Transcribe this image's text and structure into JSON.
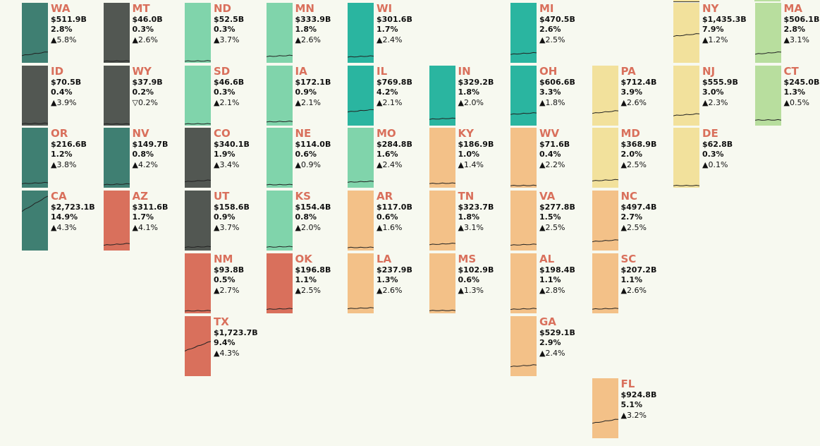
{
  "colors": {
    "a": "#3f7f72",
    "b": "#525752",
    "c": "#80d4ab",
    "d": "#2ab5a0",
    "e": "#f3c188",
    "f": "#d9705c",
    "g": "#f2e19c",
    "h": "#b8de9e"
  },
  "states": [
    {
      "abbr": "WA",
      "col": 0,
      "row": 0,
      "c": "a",
      "gdp": "$511.9B",
      "v": 511.9,
      "share": "2.8%",
      "growth": "▲5.8%"
    },
    {
      "abbr": "MT",
      "col": 1,
      "row": 0,
      "c": "b",
      "gdp": "$46.0B",
      "v": 46,
      "share": "0.3%",
      "growth": "▲2.6%"
    },
    {
      "abbr": "ND",
      "col": 2,
      "row": 0,
      "c": "c",
      "gdp": "$52.5B",
      "v": 52.5,
      "share": "0.3%",
      "growth": "▲3.7%"
    },
    {
      "abbr": "MN",
      "col": 3,
      "row": 0,
      "c": "c",
      "gdp": "$333.9B",
      "v": 333.9,
      "share": "1.8%",
      "growth": "▲2.6%"
    },
    {
      "abbr": "WI",
      "col": 4,
      "row": 0,
      "c": "d",
      "gdp": "$301.6B",
      "v": 301.6,
      "share": "1.7%",
      "growth": "▲2.4%"
    },
    {
      "abbr": "MI",
      "col": 6,
      "row": 0,
      "c": "d",
      "gdp": "$470.5B",
      "v": 470.5,
      "share": "2.6%",
      "growth": "▲2.5%"
    },
    {
      "abbr": "NY",
      "col": 8,
      "row": 0,
      "c": "g",
      "gdp": "$1,435.3B",
      "v": 1435.3,
      "share": "7.9%",
      "growth": "▲1.2%"
    },
    {
      "abbr": "MA",
      "col": 9,
      "row": 0,
      "c": "h",
      "gdp": "$506.1B",
      "v": 506.1,
      "share": "2.8%",
      "growth": "▲3.1%"
    },
    {
      "abbr": "ID",
      "col": 0,
      "row": 1,
      "c": "b",
      "gdp": "$70.5B",
      "v": 70.5,
      "share": "0.4%",
      "growth": "▲3.9%"
    },
    {
      "abbr": "WY",
      "col": 1,
      "row": 1,
      "c": "b",
      "gdp": "$37.9B",
      "v": 37.9,
      "share": "0.2%",
      "growth": "▽0.2%"
    },
    {
      "abbr": "SD",
      "col": 2,
      "row": 1,
      "c": "c",
      "gdp": "$46.6B",
      "v": 46.6,
      "share": "0.3%",
      "growth": "▲2.1%"
    },
    {
      "abbr": "IA",
      "col": 3,
      "row": 1,
      "c": "c",
      "gdp": "$172.1B",
      "v": 172.1,
      "share": "0.9%",
      "growth": "▲2.1%"
    },
    {
      "abbr": "IL",
      "col": 4,
      "row": 1,
      "c": "d",
      "gdp": "$769.8B",
      "v": 769.8,
      "share": "4.2%",
      "growth": "▲2.1%"
    },
    {
      "abbr": "IN",
      "col": 5,
      "row": 1,
      "c": "d",
      "gdp": "$329.2B",
      "v": 329.2,
      "share": "1.8%",
      "growth": "▲2.0%"
    },
    {
      "abbr": "OH",
      "col": 6,
      "row": 1,
      "c": "d",
      "gdp": "$606.6B",
      "v": 606.6,
      "share": "3.3%",
      "growth": "▲1.8%"
    },
    {
      "abbr": "PA",
      "col": 7,
      "row": 1,
      "c": "g",
      "gdp": "$712.4B",
      "v": 712.4,
      "share": "3.9%",
      "growth": "▲2.6%"
    },
    {
      "abbr": "NJ",
      "col": 8,
      "row": 1,
      "c": "g",
      "gdp": "$555.9B",
      "v": 555.9,
      "share": "3.0%",
      "growth": "▲2.3%"
    },
    {
      "abbr": "CT",
      "col": 9,
      "row": 1,
      "c": "h",
      "gdp": "$245.0B",
      "v": 245,
      "share": "1.3%",
      "growth": "▲0.5%"
    },
    {
      "abbr": "OR",
      "col": 0,
      "row": 2,
      "c": "a",
      "gdp": "$216.6B",
      "v": 216.6,
      "share": "1.2%",
      "growth": "▲3.8%"
    },
    {
      "abbr": "NV",
      "col": 1,
      "row": 2,
      "c": "a",
      "gdp": "$149.7B",
      "v": 149.7,
      "share": "0.8%",
      "growth": "▲4.2%"
    },
    {
      "abbr": "CO",
      "col": 2,
      "row": 2,
      "c": "b",
      "gdp": "$340.1B",
      "v": 340.1,
      "share": "1.9%",
      "growth": "▲3.4%"
    },
    {
      "abbr": "NE",
      "col": 3,
      "row": 2,
      "c": "c",
      "gdp": "$114.0B",
      "v": 114,
      "share": "0.6%",
      "growth": "▲0.9%"
    },
    {
      "abbr": "MO",
      "col": 4,
      "row": 2,
      "c": "c",
      "gdp": "$284.8B",
      "v": 284.8,
      "share": "1.6%",
      "growth": "▲2.4%"
    },
    {
      "abbr": "KY",
      "col": 5,
      "row": 2,
      "c": "e",
      "gdp": "$186.9B",
      "v": 186.9,
      "share": "1.0%",
      "growth": "▲1.4%"
    },
    {
      "abbr": "WV",
      "col": 6,
      "row": 2,
      "c": "e",
      "gdp": "$71.6B",
      "v": 71.6,
      "share": "0.4%",
      "growth": "▲2.2%"
    },
    {
      "abbr": "MD",
      "col": 7,
      "row": 2,
      "c": "g",
      "gdp": "$368.9B",
      "v": 368.9,
      "share": "2.0%",
      "growth": "▲2.5%"
    },
    {
      "abbr": "DE",
      "col": 8,
      "row": 2,
      "c": "g",
      "gdp": "$62.8B",
      "v": 62.8,
      "share": "0.3%",
      "growth": "▲0.1%"
    },
    {
      "abbr": "CA",
      "col": 0,
      "row": 3,
      "c": "a",
      "gdp": "$2,723.1B",
      "v": 2723.1,
      "share": "14.9%",
      "growth": "▲4.3%"
    },
    {
      "abbr": "AZ",
      "col": 1,
      "row": 3,
      "c": "f",
      "gdp": "$311.6B",
      "v": 311.6,
      "share": "1.7%",
      "growth": "▲4.1%"
    },
    {
      "abbr": "UT",
      "col": 2,
      "row": 3,
      "c": "b",
      "gdp": "$158.6B",
      "v": 158.6,
      "share": "0.9%",
      "growth": "▲3.7%"
    },
    {
      "abbr": "KS",
      "col": 3,
      "row": 3,
      "c": "c",
      "gdp": "$154.4B",
      "v": 154.4,
      "share": "0.8%",
      "growth": "▲2.0%"
    },
    {
      "abbr": "AR",
      "col": 4,
      "row": 3,
      "c": "e",
      "gdp": "$117.0B",
      "v": 117,
      "share": "0.6%",
      "growth": "▲1.6%"
    },
    {
      "abbr": "TN",
      "col": 5,
      "row": 3,
      "c": "e",
      "gdp": "$323.7B",
      "v": 323.7,
      "share": "1.8%",
      "growth": "▲3.1%"
    },
    {
      "abbr": "VA",
      "col": 6,
      "row": 3,
      "c": "e",
      "gdp": "$277.8B",
      "v": 277.8,
      "share": "1.5%",
      "growth": "▲2.5%"
    },
    {
      "abbr": "NC",
      "col": 7,
      "row": 3,
      "c": "e",
      "gdp": "$497.4B",
      "v": 497.4,
      "share": "2.7%",
      "growth": "▲2.5%"
    },
    {
      "abbr": "NM",
      "col": 2,
      "row": 4,
      "c": "f",
      "gdp": "$93.8B",
      "v": 93.8,
      "share": "0.5%",
      "growth": "▲2.7%"
    },
    {
      "abbr": "OK",
      "col": 3,
      "row": 4,
      "c": "f",
      "gdp": "$196.8B",
      "v": 196.8,
      "share": "1.1%",
      "growth": "▲2.5%"
    },
    {
      "abbr": "LA",
      "col": 4,
      "row": 4,
      "c": "e",
      "gdp": "$237.9B",
      "v": 237.9,
      "share": "1.3%",
      "growth": "▲2.6%"
    },
    {
      "abbr": "MS",
      "col": 5,
      "row": 4,
      "c": "e",
      "gdp": "$102.9B",
      "v": 102.9,
      "share": "0.6%",
      "growth": "▲1.3%"
    },
    {
      "abbr": "AL",
      "col": 6,
      "row": 4,
      "c": "e",
      "gdp": "$198.4B",
      "v": 198.4,
      "share": "1.1%",
      "growth": "▲2.8%"
    },
    {
      "abbr": "SC",
      "col": 7,
      "row": 4,
      "c": "e",
      "gdp": "$207.2B",
      "v": 207.2,
      "share": "1.1%",
      "growth": "▲2.6%"
    },
    {
      "abbr": "TX",
      "col": 2,
      "row": 5,
      "c": "f",
      "gdp": "$1,723.7B",
      "v": 1723.7,
      "share": "9.4%",
      "growth": "▲4.3%"
    },
    {
      "abbr": "GA",
      "col": 6,
      "row": 5,
      "c": "e",
      "gdp": "$529.1B",
      "v": 529.1,
      "share": "2.9%",
      "growth": "▲2.4%"
    },
    {
      "abbr": "FL",
      "col": 7,
      "row": 6,
      "c": "e",
      "gdp": "$924.8B",
      "v": 924.8,
      "share": "5.1%",
      "growth": "▲3.2%"
    }
  ]
}
